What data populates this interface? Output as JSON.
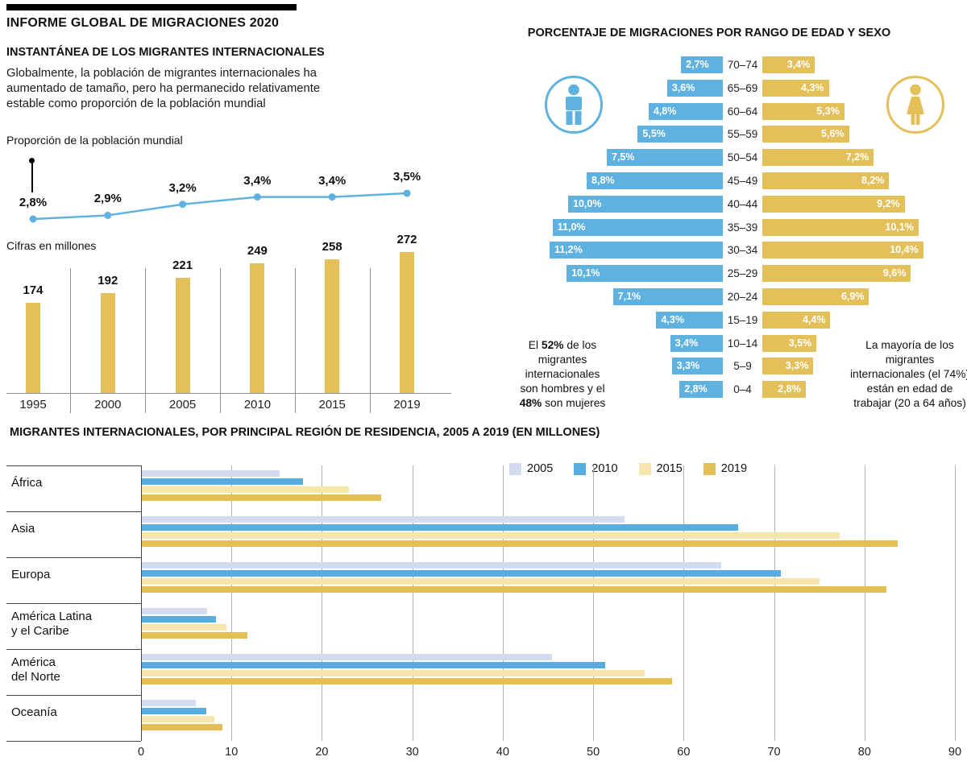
{
  "colors": {
    "blue": "#5fb2e0",
    "gold": "#e4c05a",
    "light_blue_2005": "#d2dcee",
    "blue_2010": "#57ade0",
    "pale_yellow_2015": "#f7e5ae",
    "gold_2019": "#e4bf55",
    "grid": "#b3b3b3",
    "axis": "#444444"
  },
  "report": {
    "title": "INFORME GLOBAL DE MIGRACIONES 2020"
  },
  "snapshot": {
    "title": "INSTANTÁNEA DE LOS MIGRANTES INTERNACIONALES",
    "description": "Globalmente, la población de migrantes internacionales ha aumentado de tamaño, pero ha permanecido relativamente estable como proporción de la población mundial",
    "line_label": "Proporción de la población mundial",
    "bars_label": "Cifras en millones"
  },
  "pyramid": {
    "title": "PORCENTAJE DE MIGRACIONES POR RANGO DE EDAD Y SEXO",
    "note_left_parts": [
      {
        "text": "El ",
        "bold": false
      },
      {
        "text": "52%",
        "bold": true
      },
      {
        "text": " de los migrantes internacionales son hombres y el ",
        "bold": false
      },
      {
        "text": "48%",
        "bold": true
      },
      {
        "text": " son mujeres",
        "bold": false
      }
    ],
    "note_right": "La mayoría de los migrantes internacionales (el 74%) están en edad de trabajar (20 a 64 años)",
    "male_icon": "male-pictogram",
    "female_icon": "female-pictogram"
  },
  "regions": {
    "title": "MIGRANTES INTERNACIONALES, POR PRINCIPAL REGIÓN DE RESIDENCIA, 2005 A 2019 (EN MILLONES)"
  },
  "chart_data": [
    {
      "id": "world-population-share",
      "type": "line",
      "title": "Proporción de la población mundial",
      "x": [
        "1995",
        "2000",
        "2005",
        "2010",
        "2015",
        "2019"
      ],
      "values": [
        2.8,
        2.9,
        3.2,
        3.4,
        3.4,
        3.5
      ],
      "labels": [
        "2,8%",
        "2,9%",
        "3,2%",
        "3,4%",
        "3,4%",
        "3,5%"
      ],
      "ylim": [
        2.6,
        3.7
      ],
      "grid": false
    },
    {
      "id": "migrants-in-millions",
      "type": "bar",
      "title": "Cifras en millones",
      "categories": [
        "1995",
        "2000",
        "2005",
        "2010",
        "2015",
        "2019"
      ],
      "values": [
        174,
        192,
        221,
        249,
        258,
        272
      ],
      "ylim": [
        0,
        280
      ]
    },
    {
      "id": "age-sex-pyramid",
      "type": "bar",
      "orientation": "horizontal-pyramid",
      "title": "PORCENTAJE DE MIGRACIONES POR RANGO DE EDAD Y SEXO",
      "age_groups": [
        "70–74",
        "65–69",
        "60–64",
        "55–59",
        "50–54",
        "45–49",
        "40–44",
        "35–39",
        "30–34",
        "25–29",
        "20–24",
        "15–19",
        "10–14",
        "5–9",
        "0–4"
      ],
      "series": [
        {
          "name": "Hombres",
          "color": "#5fb2e0",
          "values": [
            2.7,
            3.6,
            4.8,
            5.5,
            7.5,
            8.8,
            10.0,
            11.0,
            11.2,
            10.1,
            7.1,
            4.3,
            3.4,
            3.3,
            2.8
          ],
          "labels": [
            "2,7%",
            "3,6%",
            "4,8%",
            "5,5%",
            "7,5%",
            "8,8%",
            "10,0%",
            "11,0%",
            "11,2%",
            "10,1%",
            "7,1%",
            "4,3%",
            "3,4%",
            "3,3%",
            "2,8%"
          ]
        },
        {
          "name": "Mujeres",
          "color": "#e4c05a",
          "values": [
            3.4,
            4.3,
            5.3,
            5.6,
            7.2,
            8.2,
            9.2,
            10.1,
            10.4,
            9.6,
            6.9,
            4.4,
            3.5,
            3.3,
            2.8
          ],
          "labels": [
            "3,4%",
            "4,3%",
            "5,3%",
            "5,6%",
            "7,2%",
            "8,2%",
            "9,2%",
            "10,1%",
            "10,4%",
            "9,6%",
            "6,9%",
            "4,4%",
            "3,5%",
            "3,3%",
            "2,8%"
          ]
        }
      ]
    },
    {
      "id": "regions-of-residence",
      "type": "bar",
      "orientation": "horizontal",
      "title": "MIGRANTES INTERNACIONALES, POR PRINCIPAL REGIÓN DE RESIDENCIA, 2005 A 2019 (EN MILLONES)",
      "categories": [
        "África",
        "Asia",
        "Europa",
        "América Latina\ny el Caribe",
        "América\ndel Norte",
        "Oceanía"
      ],
      "series": [
        {
          "name": "2005",
          "color": "#d2dcee",
          "values": [
            15.2,
            53.4,
            64.1,
            7.2,
            45.4,
            6.0
          ]
        },
        {
          "name": "2010",
          "color": "#57ade0",
          "values": [
            17.8,
            65.9,
            70.7,
            8.2,
            51.2,
            7.1
          ]
        },
        {
          "name": "2015",
          "color": "#f7e5ae",
          "values": [
            22.9,
            77.2,
            74.9,
            9.4,
            55.6,
            8.0
          ]
        },
        {
          "name": "2019",
          "color": "#e4bf55",
          "values": [
            26.5,
            83.6,
            82.3,
            11.7,
            58.6,
            8.9
          ]
        }
      ],
      "xlim": [
        0,
        90
      ],
      "x_ticks": [
        0,
        10,
        20,
        30,
        40,
        50,
        60,
        70,
        80,
        90
      ],
      "legend_position": "top",
      "grid": true
    }
  ]
}
